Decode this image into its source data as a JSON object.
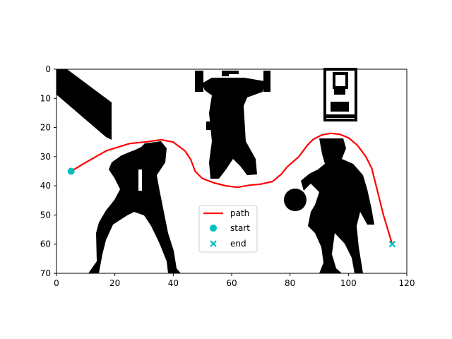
{
  "chart_data": {
    "type": "line",
    "xlim": [
      0,
      120
    ],
    "ylim": [
      70,
      0
    ],
    "xticks": [
      "0",
      "20",
      "40",
      "60",
      "80",
      "100",
      "120"
    ],
    "yticks": [
      "0",
      "10",
      "20",
      "30",
      "40",
      "50",
      "60",
      "70"
    ],
    "grid": false,
    "background": "binary occupancy map (black silhouettes of three figures and a diagonal bar, white free space)",
    "legend_position": "lower-center",
    "series": [
      {
        "name": "path",
        "style": "line",
        "color": "#ff0000",
        "points": [
          [
            5,
            35
          ],
          [
            10,
            32
          ],
          [
            17,
            28
          ],
          [
            25,
            25.5
          ],
          [
            30,
            25
          ],
          [
            36,
            24.2
          ],
          [
            40,
            25
          ],
          [
            44,
            28
          ],
          [
            46,
            31
          ],
          [
            47.5,
            35
          ],
          [
            50,
            37.5
          ],
          [
            54,
            39
          ],
          [
            58,
            40
          ],
          [
            62,
            40.5
          ],
          [
            66,
            39.8
          ],
          [
            70,
            39.4
          ],
          [
            74,
            38.5
          ],
          [
            77,
            36
          ],
          [
            79,
            33.5
          ],
          [
            83,
            30
          ],
          [
            86,
            26
          ],
          [
            88,
            24
          ],
          [
            91,
            22.5
          ],
          [
            94,
            22
          ],
          [
            97,
            22.3
          ],
          [
            100,
            23.5
          ],
          [
            103,
            26
          ],
          [
            106,
            30
          ],
          [
            108,
            34
          ],
          [
            110,
            42
          ],
          [
            112,
            50
          ],
          [
            115,
            60
          ]
        ]
      },
      {
        "name": "start",
        "style": "marker-circle",
        "color": "#00bfbf",
        "points": [
          [
            5,
            35
          ]
        ]
      },
      {
        "name": "end",
        "style": "marker-x",
        "color": "#00bfbf",
        "points": [
          [
            115,
            60
          ]
        ]
      }
    ]
  }
}
